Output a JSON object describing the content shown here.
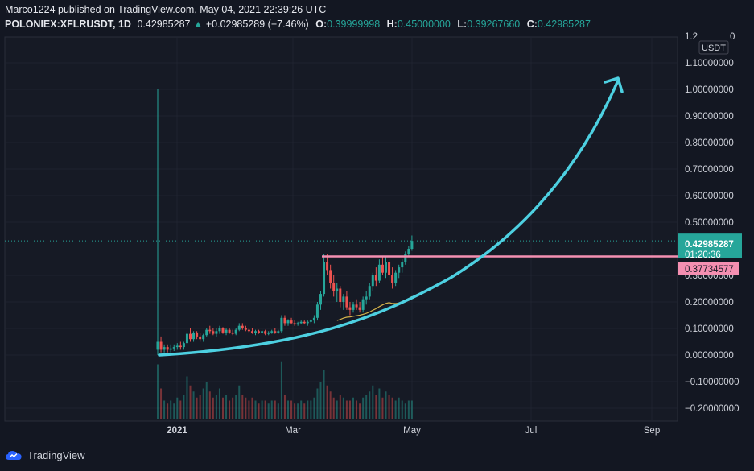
{
  "header": {
    "publisher_line": "Marco1224 published on TradingView.com, May 04, 2021 22:39:26 UTC",
    "symbol": "POLONIEX:XFLRUSDT, 1D",
    "last": "0.42985287",
    "change_arrow": "▲",
    "change": "+0.02985289 (+7.46%)",
    "o_label": "O:",
    "o": "0.39999998",
    "h_label": "H:",
    "h": "0.45000000",
    "l_label": "L:",
    "l": "0.39267660",
    "c_label": "C:",
    "c": "0.42985287"
  },
  "axis": {
    "currency": "USDT",
    "top_partial": "1.2",
    "top_partial_tail": "0",
    "y_ticks": [
      1.1,
      1.0,
      0.9,
      0.8,
      0.7,
      0.6,
      0.5,
      0.3,
      0.2,
      0.1,
      0.0,
      -0.1,
      -0.2
    ],
    "y_tick_labels": [
      "1.10000000",
      "1.00000000",
      "0.90000000",
      "0.80000000",
      "0.70000000",
      "0.60000000",
      "0.50000000",
      "0.30000000",
      "0.20000000",
      "0.10000000",
      "0.00000000",
      "−0.10000000",
      "−0.20000000"
    ],
    "x_labels": [
      "2021",
      "Mar",
      "May",
      "Jul",
      "Sep"
    ]
  },
  "price_tag": {
    "value": "0.42985287",
    "countdown": "01:20:36"
  },
  "level_tag": {
    "value": "0.37734577"
  },
  "colors": {
    "background": "#131722",
    "up": "#26a69a",
    "down": "#ef5350",
    "level_line": "#f48fb1",
    "curve": "#4dd0e1",
    "ma": "#d4b24a",
    "axis_text": "#d1d4dc"
  },
  "brand": "TradingView",
  "chart_data": {
    "type": "candlestick",
    "symbol": "POLONIEX:XFLRUSDT",
    "interval": "1D",
    "ylim": [
      -0.25,
      1.2
    ],
    "horizontal_level": 0.37734577,
    "last_price": 0.42985287,
    "candles": [
      {
        "o": 0.02,
        "h": 1.0,
        "l": 0.0,
        "c": 0.05
      },
      {
        "o": 0.05,
        "h": 0.07,
        "l": 0.01,
        "c": 0.02
      },
      {
        "o": 0.02,
        "h": 0.04,
        "l": 0.01,
        "c": 0.03
      },
      {
        "o": 0.03,
        "h": 0.04,
        "l": 0.01,
        "c": 0.02
      },
      {
        "o": 0.02,
        "h": 0.04,
        "l": 0.01,
        "c": 0.025
      },
      {
        "o": 0.025,
        "h": 0.04,
        "l": 0.015,
        "c": 0.03
      },
      {
        "o": 0.03,
        "h": 0.045,
        "l": 0.02,
        "c": 0.035
      },
      {
        "o": 0.035,
        "h": 0.05,
        "l": 0.02,
        "c": 0.03
      },
      {
        "o": 0.03,
        "h": 0.05,
        "l": 0.02,
        "c": 0.045
      },
      {
        "o": 0.045,
        "h": 0.09,
        "l": 0.04,
        "c": 0.08
      },
      {
        "o": 0.08,
        "h": 0.1,
        "l": 0.05,
        "c": 0.06
      },
      {
        "o": 0.06,
        "h": 0.09,
        "l": 0.05,
        "c": 0.085
      },
      {
        "o": 0.085,
        "h": 0.09,
        "l": 0.06,
        "c": 0.07
      },
      {
        "o": 0.07,
        "h": 0.085,
        "l": 0.05,
        "c": 0.06
      },
      {
        "o": 0.06,
        "h": 0.08,
        "l": 0.05,
        "c": 0.075
      },
      {
        "o": 0.075,
        "h": 0.1,
        "l": 0.07,
        "c": 0.095
      },
      {
        "o": 0.095,
        "h": 0.11,
        "l": 0.08,
        "c": 0.09
      },
      {
        "o": 0.09,
        "h": 0.1,
        "l": 0.075,
        "c": 0.08
      },
      {
        "o": 0.08,
        "h": 0.1,
        "l": 0.07,
        "c": 0.09
      },
      {
        "o": 0.09,
        "h": 0.11,
        "l": 0.08,
        "c": 0.1
      },
      {
        "o": 0.1,
        "h": 0.105,
        "l": 0.08,
        "c": 0.085
      },
      {
        "o": 0.085,
        "h": 0.1,
        "l": 0.075,
        "c": 0.095
      },
      {
        "o": 0.095,
        "h": 0.1,
        "l": 0.08,
        "c": 0.085
      },
      {
        "o": 0.085,
        "h": 0.095,
        "l": 0.075,
        "c": 0.08
      },
      {
        "o": 0.08,
        "h": 0.1,
        "l": 0.075,
        "c": 0.095
      },
      {
        "o": 0.095,
        "h": 0.12,
        "l": 0.09,
        "c": 0.11
      },
      {
        "o": 0.11,
        "h": 0.12,
        "l": 0.095,
        "c": 0.1
      },
      {
        "o": 0.1,
        "h": 0.11,
        "l": 0.09,
        "c": 0.095
      },
      {
        "o": 0.095,
        "h": 0.1,
        "l": 0.085,
        "c": 0.09
      },
      {
        "o": 0.09,
        "h": 0.1,
        "l": 0.08,
        "c": 0.085
      },
      {
        "o": 0.085,
        "h": 0.095,
        "l": 0.075,
        "c": 0.09
      },
      {
        "o": 0.09,
        "h": 0.095,
        "l": 0.08,
        "c": 0.085
      },
      {
        "o": 0.085,
        "h": 0.095,
        "l": 0.08,
        "c": 0.09
      },
      {
        "o": 0.09,
        "h": 0.095,
        "l": 0.075,
        "c": 0.08
      },
      {
        "o": 0.08,
        "h": 0.09,
        "l": 0.075,
        "c": 0.085
      },
      {
        "o": 0.085,
        "h": 0.095,
        "l": 0.08,
        "c": 0.09
      },
      {
        "o": 0.09,
        "h": 0.1,
        "l": 0.08,
        "c": 0.085
      },
      {
        "o": 0.085,
        "h": 0.095,
        "l": 0.08,
        "c": 0.09
      },
      {
        "o": 0.09,
        "h": 0.15,
        "l": 0.085,
        "c": 0.14
      },
      {
        "o": 0.14,
        "h": 0.15,
        "l": 0.11,
        "c": 0.12
      },
      {
        "o": 0.12,
        "h": 0.135,
        "l": 0.11,
        "c": 0.13
      },
      {
        "o": 0.13,
        "h": 0.14,
        "l": 0.115,
        "c": 0.12
      },
      {
        "o": 0.12,
        "h": 0.13,
        "l": 0.11,
        "c": 0.115
      },
      {
        "o": 0.115,
        "h": 0.125,
        "l": 0.11,
        "c": 0.12
      },
      {
        "o": 0.12,
        "h": 0.13,
        "l": 0.115,
        "c": 0.125
      },
      {
        "o": 0.125,
        "h": 0.13,
        "l": 0.115,
        "c": 0.12
      },
      {
        "o": 0.12,
        "h": 0.13,
        "l": 0.11,
        "c": 0.125
      },
      {
        "o": 0.125,
        "h": 0.135,
        "l": 0.12,
        "c": 0.13
      },
      {
        "o": 0.13,
        "h": 0.15,
        "l": 0.12,
        "c": 0.14
      },
      {
        "o": 0.14,
        "h": 0.2,
        "l": 0.13,
        "c": 0.19
      },
      {
        "o": 0.19,
        "h": 0.24,
        "l": 0.17,
        "c": 0.23
      },
      {
        "o": 0.23,
        "h": 0.38,
        "l": 0.22,
        "c": 0.35
      },
      {
        "o": 0.35,
        "h": 0.38,
        "l": 0.3,
        "c": 0.32
      },
      {
        "o": 0.32,
        "h": 0.34,
        "l": 0.25,
        "c": 0.27
      },
      {
        "o": 0.27,
        "h": 0.3,
        "l": 0.22,
        "c": 0.24
      },
      {
        "o": 0.24,
        "h": 0.27,
        "l": 0.2,
        "c": 0.25
      },
      {
        "o": 0.25,
        "h": 0.26,
        "l": 0.18,
        "c": 0.2
      },
      {
        "o": 0.2,
        "h": 0.23,
        "l": 0.17,
        "c": 0.22
      },
      {
        "o": 0.22,
        "h": 0.24,
        "l": 0.17,
        "c": 0.18
      },
      {
        "o": 0.18,
        "h": 0.2,
        "l": 0.15,
        "c": 0.17
      },
      {
        "o": 0.17,
        "h": 0.2,
        "l": 0.16,
        "c": 0.19
      },
      {
        "o": 0.19,
        "h": 0.21,
        "l": 0.17,
        "c": 0.18
      },
      {
        "o": 0.18,
        "h": 0.2,
        "l": 0.16,
        "c": 0.17
      },
      {
        "o": 0.17,
        "h": 0.22,
        "l": 0.16,
        "c": 0.21
      },
      {
        "o": 0.21,
        "h": 0.24,
        "l": 0.19,
        "c": 0.22
      },
      {
        "o": 0.22,
        "h": 0.27,
        "l": 0.21,
        "c": 0.26
      },
      {
        "o": 0.26,
        "h": 0.31,
        "l": 0.24,
        "c": 0.3
      },
      {
        "o": 0.3,
        "h": 0.33,
        "l": 0.26,
        "c": 0.28
      },
      {
        "o": 0.28,
        "h": 0.36,
        "l": 0.27,
        "c": 0.34
      },
      {
        "o": 0.34,
        "h": 0.37,
        "l": 0.3,
        "c": 0.31
      },
      {
        "o": 0.31,
        "h": 0.37,
        "l": 0.29,
        "c": 0.35
      },
      {
        "o": 0.35,
        "h": 0.36,
        "l": 0.28,
        "c": 0.3
      },
      {
        "o": 0.3,
        "h": 0.33,
        "l": 0.25,
        "c": 0.27
      },
      {
        "o": 0.27,
        "h": 0.32,
        "l": 0.26,
        "c": 0.31
      },
      {
        "o": 0.31,
        "h": 0.34,
        "l": 0.29,
        "c": 0.33
      },
      {
        "o": 0.33,
        "h": 0.36,
        "l": 0.31,
        "c": 0.35
      },
      {
        "o": 0.35,
        "h": 0.39,
        "l": 0.34,
        "c": 0.38
      },
      {
        "o": 0.38,
        "h": 0.41,
        "l": 0.37,
        "c": 0.4
      },
      {
        "o": 0.4,
        "h": 0.45,
        "l": 0.3926766,
        "c": 0.42985287
      }
    ],
    "volume": [
      0.9,
      0.5,
      0.3,
      0.25,
      0.3,
      0.25,
      0.35,
      0.3,
      0.4,
      0.7,
      0.55,
      0.45,
      0.35,
      0.4,
      0.5,
      0.6,
      0.45,
      0.35,
      0.4,
      0.5,
      0.35,
      0.4,
      0.3,
      0.35,
      0.4,
      0.55,
      0.4,
      0.35,
      0.3,
      0.35,
      0.3,
      0.25,
      0.3,
      0.3,
      0.25,
      0.3,
      0.3,
      0.25,
      0.95,
      0.4,
      0.3,
      0.3,
      0.25,
      0.25,
      0.3,
      0.25,
      0.3,
      0.3,
      0.35,
      0.5,
      0.6,
      0.8,
      0.55,
      0.45,
      0.35,
      0.3,
      0.4,
      0.35,
      0.3,
      0.3,
      0.35,
      0.3,
      0.25,
      0.35,
      0.4,
      0.45,
      0.55,
      0.4,
      0.5,
      0.35,
      0.45,
      0.4,
      0.35,
      0.3,
      0.35,
      0.3,
      0.25,
      0.3,
      0.3
    ]
  }
}
